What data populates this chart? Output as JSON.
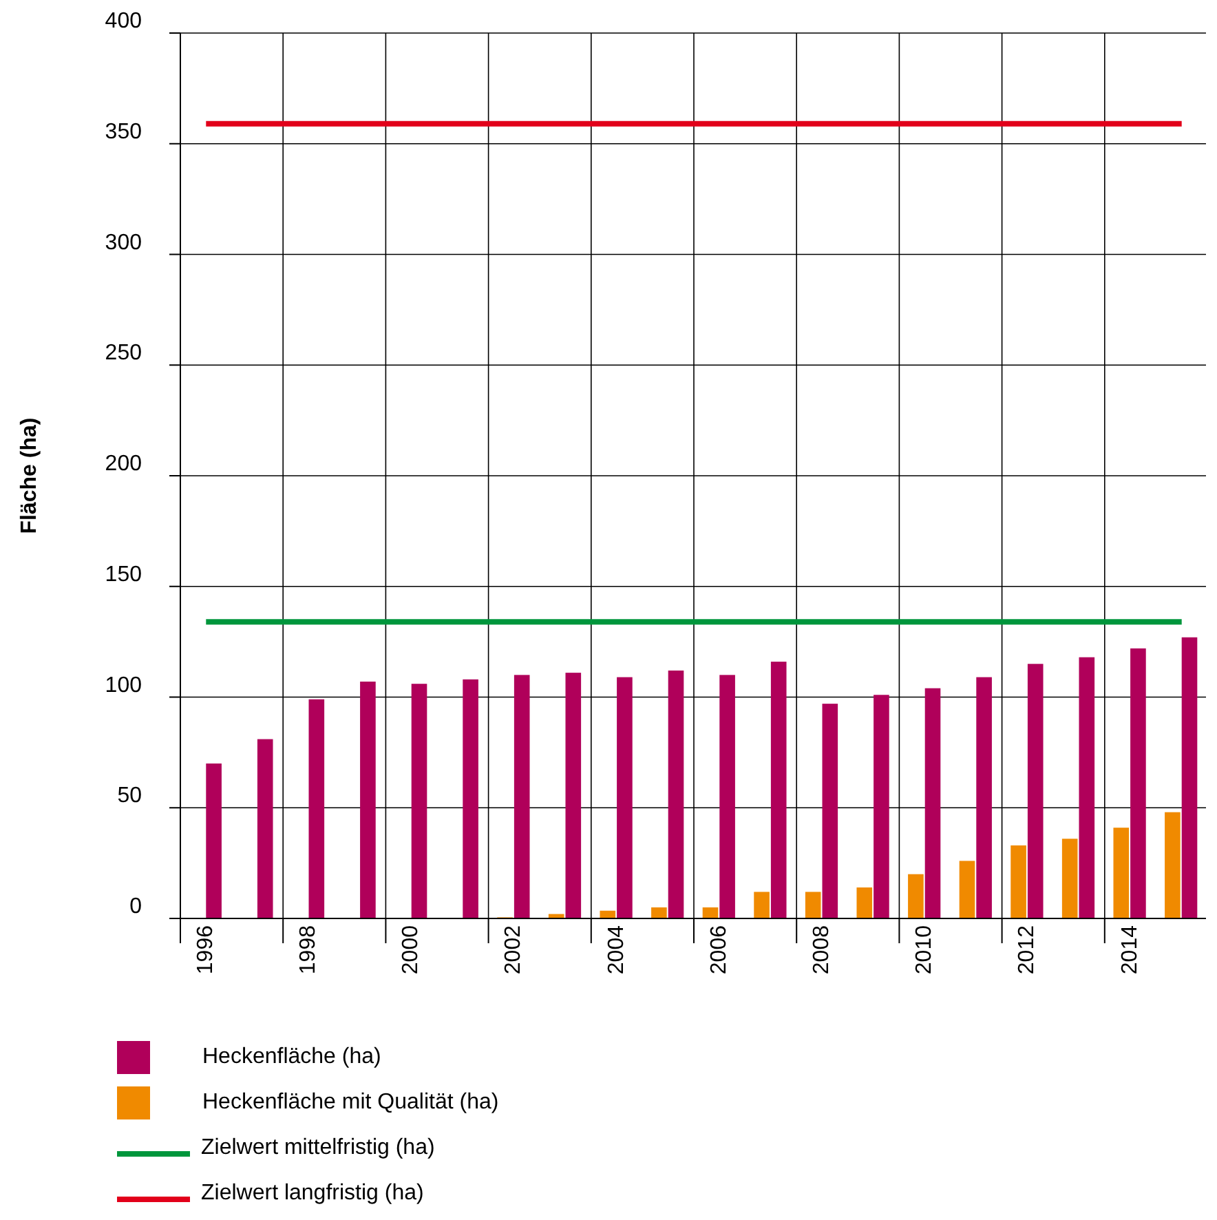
{
  "chart_data": {
    "type": "bar",
    "ylabel": "Fläche (ha)",
    "categories": [
      "1996",
      null,
      "1998",
      null,
      "2000",
      null,
      "2002",
      null,
      "2004",
      null,
      "2006",
      null,
      "2008",
      null,
      "2010",
      null,
      "2012",
      null,
      "2014",
      null
    ],
    "series": [
      {
        "name": "Heckenfläche (ha)",
        "color": "#b0005a",
        "values": [
          70,
          81,
          99,
          107,
          106,
          108,
          110,
          111,
          109,
          112,
          110,
          116,
          97,
          101,
          104,
          109,
          115,
          118,
          122,
          127
        ]
      },
      {
        "name": "Heckenfläche mit Qualität (ha)",
        "color": "#f08a00",
        "values": [
          0,
          0,
          0,
          0,
          0,
          0,
          0.5,
          2,
          3.5,
          5,
          5,
          12,
          12,
          14,
          20,
          26,
          33,
          36,
          41,
          48
        ]
      }
    ],
    "ylim": [
      0,
      400
    ],
    "yticks": [
      0,
      50,
      100,
      150,
      200,
      250,
      300,
      350,
      400
    ],
    "grid": true,
    "legend": "bottom",
    "ref_lines": [
      {
        "axis": "y",
        "value": 134,
        "label": "Zielwert mittelfristig (ha)",
        "color": "#00963c"
      },
      {
        "axis": "y",
        "value": 359,
        "label": "Zielwert langfristig (ha)",
        "color": "#e2001a"
      }
    ]
  }
}
